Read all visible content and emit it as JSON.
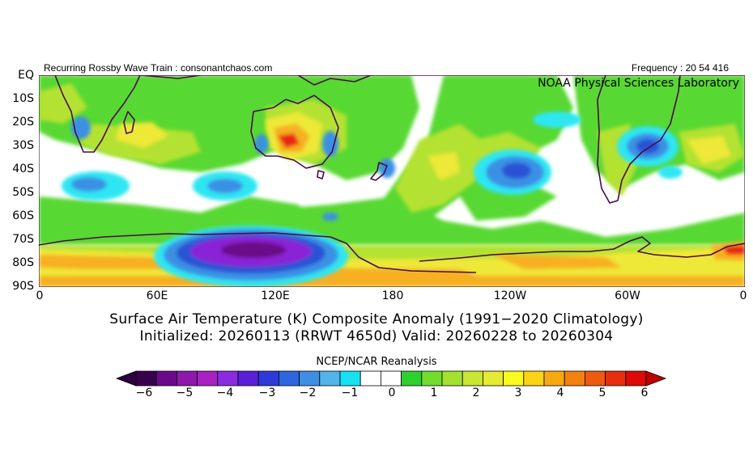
{
  "header": {
    "left": "Recurring Rossby Wave Train : consonantchaos.com",
    "right": "Frequency : 20 54 416",
    "lab": "NOAA Physical Sciences Laboratory"
  },
  "latitude_labels": [
    "EQ",
    "10S",
    "20S",
    "30S",
    "40S",
    "50S",
    "60S",
    "70S",
    "80S",
    "90S"
  ],
  "longitude_labels": [
    "0",
    "60E",
    "120E",
    "180",
    "120W",
    "60W",
    "0"
  ],
  "title_line1": "Surface Air Temperature (K) Composite Anomaly (1991−2020 Climatology)",
  "title_line2": "Initialized: 20260113 (RRWT 4650d) Valid: 20260228 to 20260304",
  "colorbar": {
    "title": "NCEP/NCAR Reanalysis",
    "tick_labels": [
      "−6",
      "−5",
      "−4",
      "−3",
      "−2",
      "−1",
      "0",
      "1",
      "2",
      "3",
      "4",
      "5",
      "6"
    ],
    "colors": [
      "#3a0050",
      "#6a0a8a",
      "#8e18aa",
      "#a722c0",
      "#8a2be0",
      "#5a20d8",
      "#2e3ad8",
      "#2e66dc",
      "#3e8ee4",
      "#52b4ea",
      "#16e2f2",
      "#ffffff",
      "#ffffff",
      "#2ed02e",
      "#72dc2e",
      "#a2e22e",
      "#c8e632",
      "#e6ea32",
      "#fafa20",
      "#fad414",
      "#f6aa10",
      "#f28210",
      "#ee5a10",
      "#e82e10",
      "#dc0a08"
    ],
    "under_color": "#2a0040",
    "over_color": "#c00000"
  },
  "map_colors": {
    "green": "#58d830",
    "yellowgreen": "#b4e232",
    "yellow": "#eee838",
    "orange": "#f6b020",
    "red": "#e82818",
    "cyan": "#2ee6f2",
    "blue": "#3a90e4",
    "darkblue": "#2a52d4",
    "violet": "#8a20d6",
    "purple": "#6a0a88",
    "coast": "#4a0a4a"
  }
}
